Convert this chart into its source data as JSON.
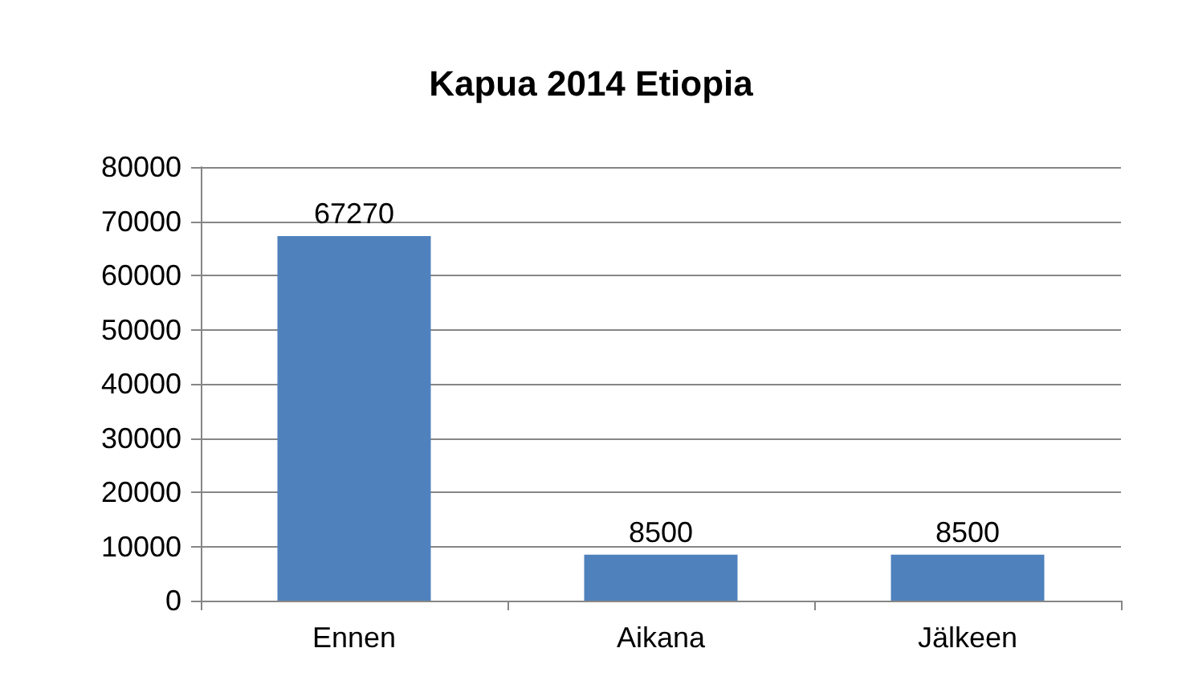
{
  "chart_data": {
    "type": "bar",
    "title": "Kapua 2014 Etiopia",
    "categories": [
      "Ennen",
      "Aikana",
      "Jälkeen"
    ],
    "values": [
      67270,
      8500,
      8500
    ],
    "color": "#4f81bd",
    "ylim": [
      0,
      80000
    ],
    "yticks": [
      0,
      10000,
      20000,
      30000,
      40000,
      50000,
      60000,
      70000,
      80000
    ],
    "grid": "y",
    "data_labels": true
  }
}
